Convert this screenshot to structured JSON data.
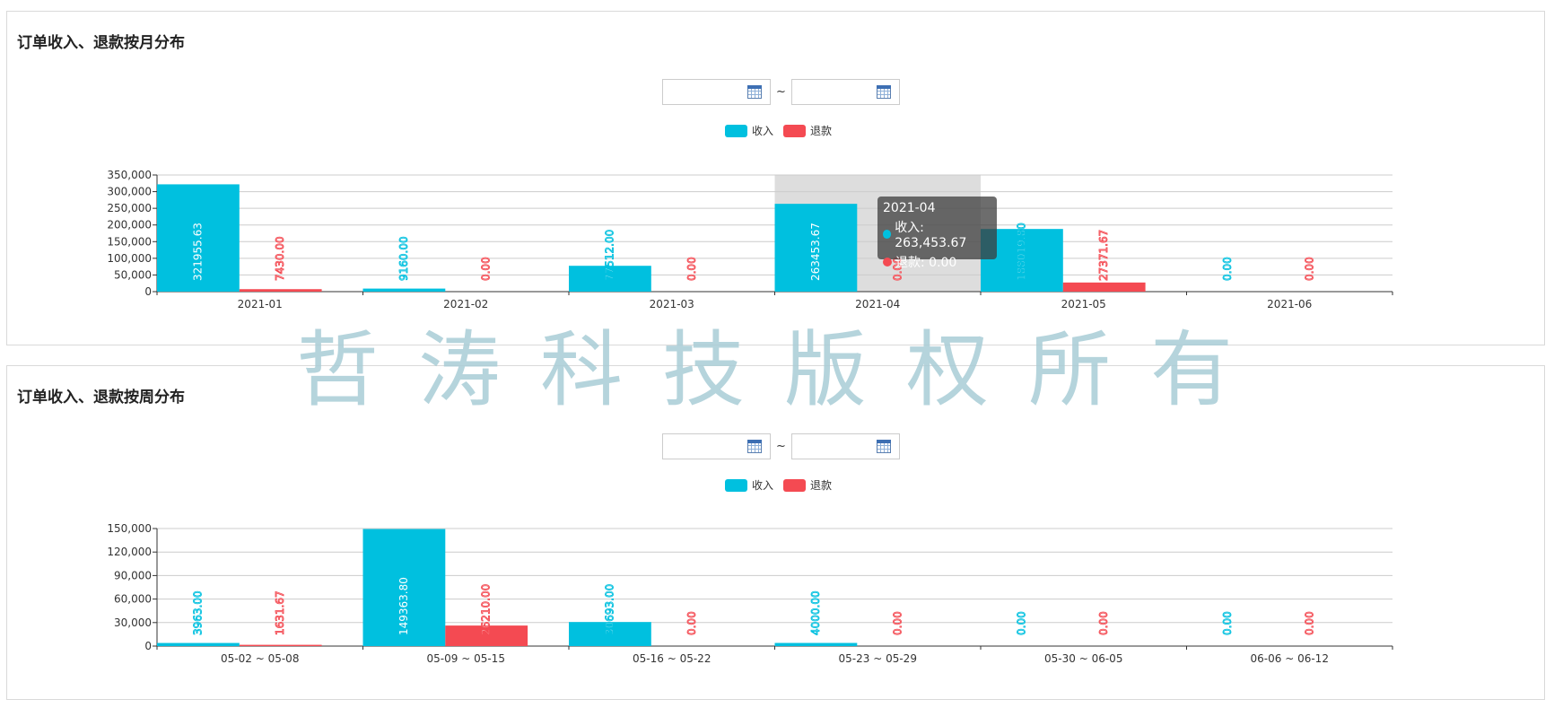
{
  "colors": {
    "income": "#00c0df",
    "refund": "#f44a52",
    "highlight": "#dddddd"
  },
  "panels": [
    {
      "title": "订单收入、退款按月分布",
      "date_from": "",
      "date_to": "",
      "tilde": "~",
      "legend": [
        "收入",
        "退款"
      ]
    },
    {
      "title": "订单收入、退款按周分布",
      "date_from": "",
      "date_to": "",
      "tilde": "~",
      "legend": [
        "收入",
        "退款"
      ]
    }
  ],
  "tooltip": {
    "title": "2021-04",
    "rows": [
      "收入: 263,453.67",
      "退款: 0.00"
    ]
  },
  "watermark": "哲涛科技版权所有",
  "chart_data": [
    {
      "type": "bar",
      "categories": [
        "2021-01",
        "2021-02",
        "2021-03",
        "2021-04",
        "2021-05",
        "2021-06"
      ],
      "series": [
        {
          "name": "收入",
          "values": [
            321955.63,
            9160.0,
            77512.0,
            263453.67,
            188019.8,
            0.0
          ],
          "labels": [
            "321955.63",
            "9160.00",
            "77512.00",
            "263453.67",
            "188019.80",
            "0.00"
          ]
        },
        {
          "name": "退款",
          "values": [
            7430.0,
            0.0,
            0.0,
            0.0,
            27371.67,
            0.0
          ],
          "labels": [
            "7430.00",
            "0.00",
            "0.00",
            "0.00",
            "27371.67",
            "0.00"
          ]
        }
      ],
      "ylim": [
        0,
        350000
      ],
      "yticks": [
        0,
        50000,
        100000,
        150000,
        200000,
        250000,
        300000,
        350000
      ],
      "yticklabels": [
        "0",
        "50,000",
        "100,000",
        "150,000",
        "200,000",
        "250,000",
        "300,000",
        "350,000"
      ],
      "highlighted_category": "2021-04",
      "grid": true,
      "legend_position": "top-center"
    },
    {
      "type": "bar",
      "categories": [
        "05-02 ~ 05-08",
        "05-09 ~ 05-15",
        "05-16 ~ 05-22",
        "05-23 ~ 05-29",
        "05-30 ~ 06-05",
        "06-06 ~ 06-12"
      ],
      "series": [
        {
          "name": "收入",
          "values": [
            3963.0,
            149363.8,
            30693.0,
            4000.0,
            0.0,
            0.0
          ],
          "labels": [
            "3963.00",
            "149363.80",
            "30693.00",
            "4000.00",
            "0.00",
            "0.00"
          ]
        },
        {
          "name": "退款",
          "values": [
            1631.67,
            26210.0,
            0.0,
            0.0,
            0.0,
            0.0
          ],
          "labels": [
            "1631.67",
            "26210.00",
            "0.00",
            "0.00",
            "0.00",
            "0.00"
          ]
        }
      ],
      "ylim": [
        0,
        150000
      ],
      "yticks": [
        0,
        30000,
        60000,
        90000,
        120000,
        150000
      ],
      "yticklabels": [
        "0",
        "30,000",
        "60,000",
        "90,000",
        "120,000",
        "150,000"
      ],
      "grid": true,
      "legend_position": "top-center"
    }
  ]
}
